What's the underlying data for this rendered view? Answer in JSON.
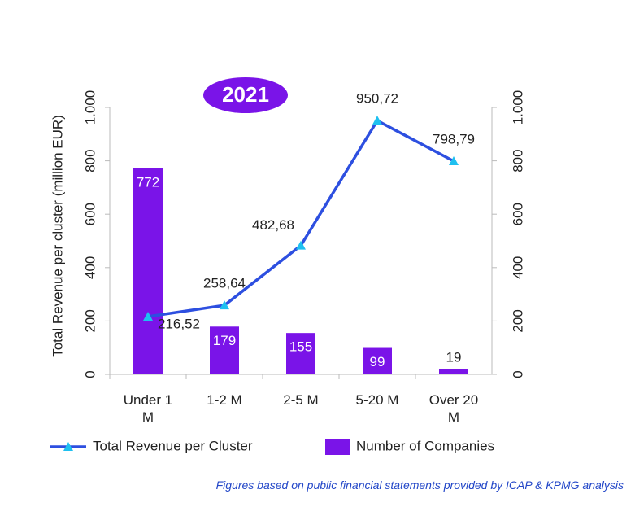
{
  "chart_data": {
    "type": "combo",
    "annotation": "2021",
    "y_label": "Total Revenue per cluster (million EUR)",
    "note": "Figures based on public financial statements provided by ICAP & KPMG analysis",
    "categories": [
      "Under 1 M",
      "1-2 M",
      "2-5 M",
      "5-20 M",
      "Over 20 M"
    ],
    "series": [
      {
        "name": "Total Revenue per Cluster",
        "type": "line",
        "color": "#2d4fe0",
        "marker_color": "#1ec0f0",
        "values": [
          216.52,
          258.64,
          482.68,
          950.72,
          798.79
        ],
        "value_labels": [
          "216,52",
          "258,64",
          "482,68",
          "950,72",
          "798,79"
        ]
      },
      {
        "name": "Number of Companies",
        "type": "bar",
        "axis": "y2",
        "color": "#7a14e8",
        "values": [
          772,
          179,
          155,
          99,
          19
        ]
      }
    ],
    "ylim": [
      0,
      1000
    ],
    "yticks": [
      0,
      200,
      400,
      600,
      800,
      {
        "value": 1000,
        "label": "1.000"
      }
    ],
    "y2lim": [
      0,
      1000
    ],
    "y2ticks": [
      0,
      200,
      400,
      600,
      800,
      {
        "value": 1000,
        "label": "1.000"
      }
    ]
  }
}
